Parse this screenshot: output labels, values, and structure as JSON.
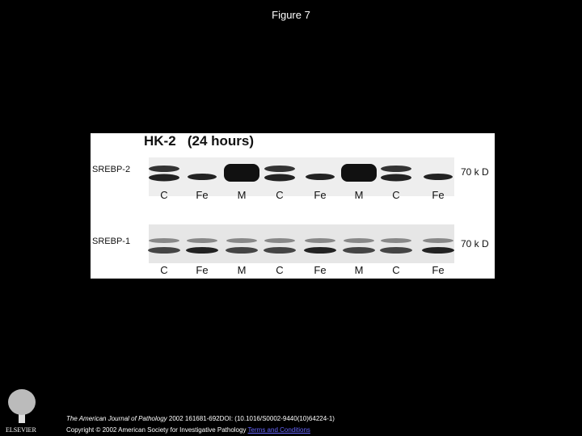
{
  "header": {
    "title": "Figure 7"
  },
  "figure": {
    "panel_title": "HK-2   (24 hours)",
    "blots": [
      {
        "label": "SREBP-2",
        "marker": "70 k D",
        "lanes": [
          "C",
          "Fe",
          "M",
          "C",
          "Fe",
          "M",
          "C",
          "Fe"
        ]
      },
      {
        "label": "SREBP-1",
        "marker": "70 k D",
        "lanes": [
          "C",
          "Fe",
          "M",
          "C",
          "Fe",
          "M",
          "C",
          "Fe"
        ]
      }
    ]
  },
  "footer": {
    "journal": "The American Journal of Pathology",
    "citation": " 2002 161681-692DOI: (10.1016/S0002-9440(10)64224-1)",
    "copyright": "Copyright © 2002 American Society for Investigative Pathology",
    "link": "Terms and Conditions",
    "publisher": "ELSEVIER"
  }
}
